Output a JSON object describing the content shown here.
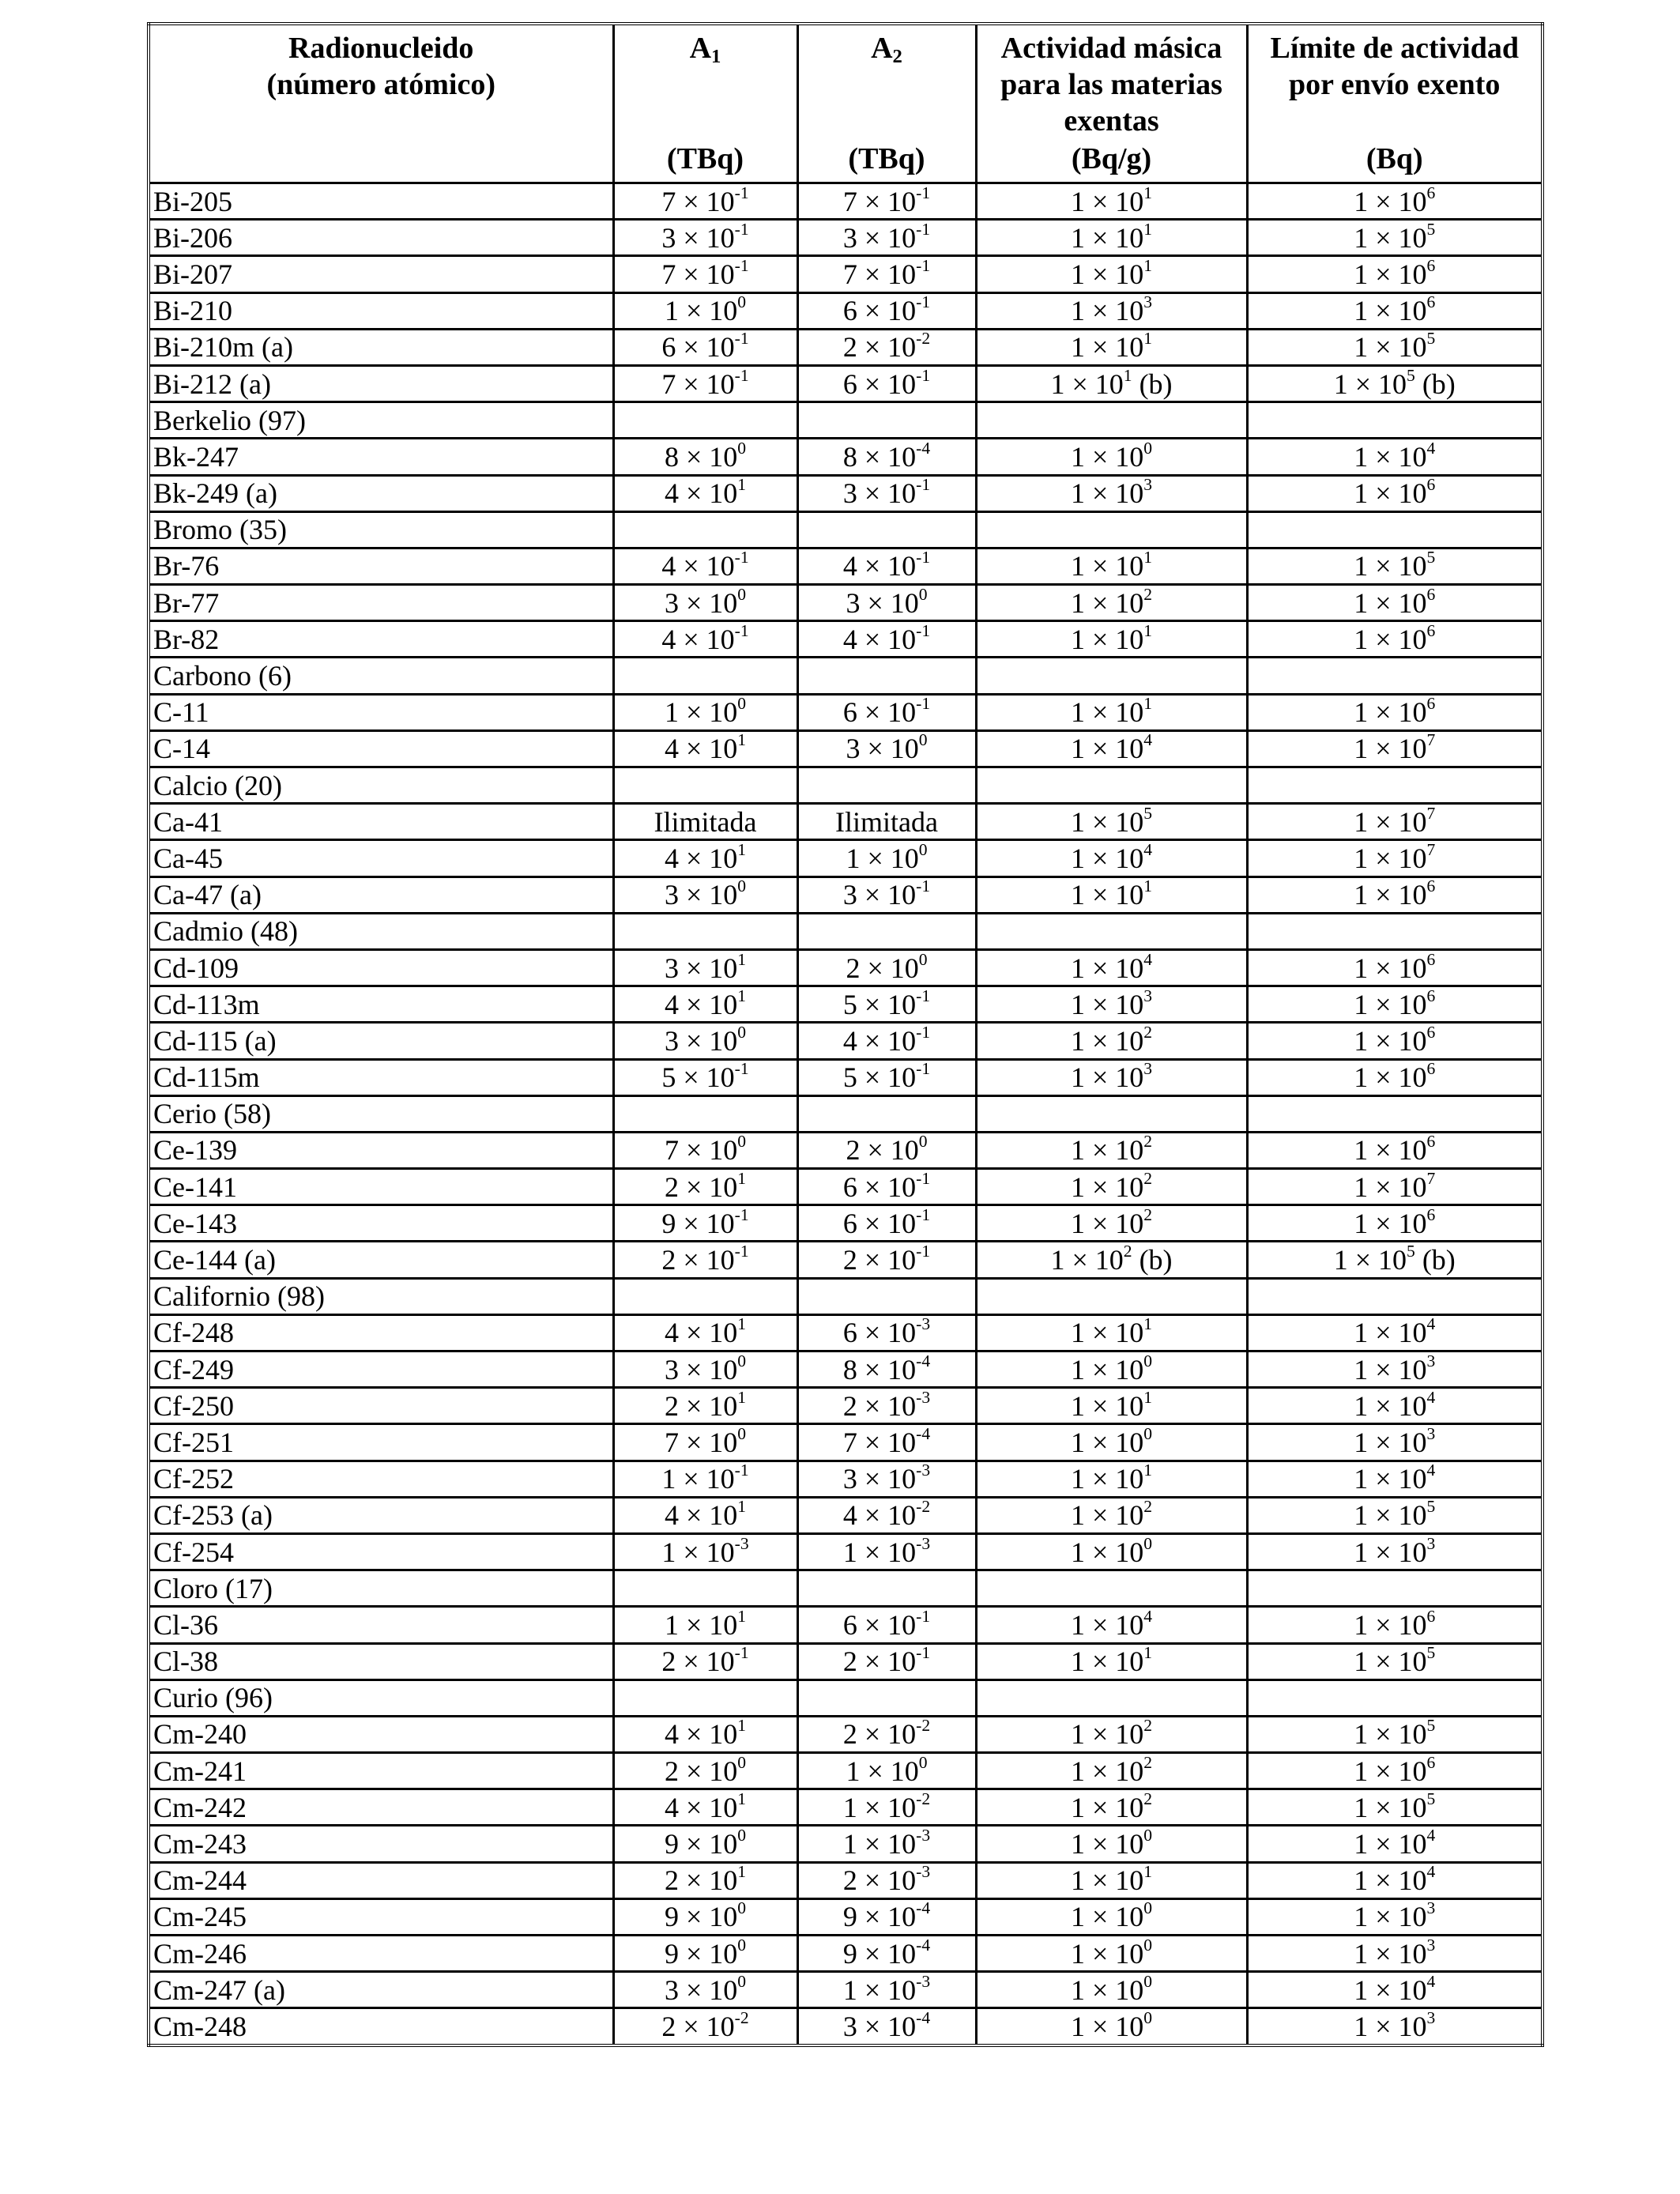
{
  "table": {
    "headers": [
      {
        "lines": [
          "Radionucleido",
          "(número atómico)"
        ],
        "unit": ""
      },
      {
        "main": "A",
        "sub": "1",
        "unit": "(TBq)"
      },
      {
        "main": "A",
        "sub": "2",
        "unit": "(TBq)"
      },
      {
        "lines": [
          "Actividad másica",
          "para las materias",
          "exentas"
        ],
        "unit": "(Bq/g)"
      },
      {
        "lines": [
          "Límite de actividad",
          "por envío exento"
        ],
        "unit": "(Bq)"
      }
    ],
    "rows": [
      {
        "name": "Bi-205",
        "cells": [
          "7|-1",
          "7|-1",
          "1|1",
          "1|6"
        ]
      },
      {
        "name": "Bi-206",
        "cells": [
          "3|-1",
          "3|-1",
          "1|1",
          "1|5"
        ]
      },
      {
        "name": "Bi-207",
        "cells": [
          "7|-1",
          "7|-1",
          "1|1",
          "1|6"
        ]
      },
      {
        "name": "Bi-210",
        "cells": [
          "1|0",
          "6|-1",
          "1|3",
          "1|6"
        ]
      },
      {
        "name": "Bi-210m (a)",
        "cells": [
          "6|-1",
          "2|-2",
          "1|1",
          "1|5"
        ]
      },
      {
        "name": "Bi-212 (a)",
        "cells": [
          "7|-1",
          "6|-1",
          "1|1|(b)",
          "1|5|(b)"
        ]
      },
      {
        "name": "Berkelio (97)",
        "element": true
      },
      {
        "name": "Bk-247",
        "cells": [
          "8|0",
          "8|-4",
          "1|0",
          "1|4"
        ]
      },
      {
        "name": "Bk-249 (a)",
        "cells": [
          "4|1",
          "3|-1",
          "1|3",
          "1|6"
        ]
      },
      {
        "name": "Bromo (35)",
        "element": true
      },
      {
        "name": "Br-76",
        "cells": [
          "4|-1",
          "4|-1",
          "1|1",
          "1|5"
        ]
      },
      {
        "name": "Br-77",
        "cells": [
          "3|0",
          "3|0",
          "1|2",
          "1|6"
        ]
      },
      {
        "name": "Br-82",
        "cells": [
          "4|-1",
          "4|-1",
          "1|1",
          "1|6"
        ]
      },
      {
        "name": "Carbono (6)",
        "element": true
      },
      {
        "name": "C-11",
        "cells": [
          "1|0",
          "6|-1",
          "1|1",
          "1|6"
        ]
      },
      {
        "name": "C-14",
        "cells": [
          "4|1",
          "3|0",
          "1|4",
          "1|7"
        ]
      },
      {
        "name": "Calcio (20)",
        "element": true
      },
      {
        "name": "Ca-41",
        "cells": [
          "Ilimitada",
          "Ilimitada",
          "1|5",
          "1|7"
        ]
      },
      {
        "name": "Ca-45",
        "cells": [
          "4|1",
          "1|0",
          "1|4",
          "1|7"
        ]
      },
      {
        "name": "Ca-47 (a)",
        "cells": [
          "3|0",
          "3|-1",
          "1|1",
          "1|6"
        ]
      },
      {
        "name": "Cadmio (48)",
        "element": true
      },
      {
        "name": "Cd-109",
        "cells": [
          "3|1",
          "2|0",
          "1|4",
          "1|6"
        ]
      },
      {
        "name": "Cd-113m",
        "cells": [
          "4|1",
          "5|-1",
          "1|3",
          "1|6"
        ]
      },
      {
        "name": "Cd-115 (a)",
        "cells": [
          "3|0",
          "4|-1",
          "1|2",
          "1|6"
        ]
      },
      {
        "name": "Cd-115m",
        "cells": [
          "5|-1",
          "5|-1",
          "1|3",
          "1|6"
        ]
      },
      {
        "name": "Cerio (58)",
        "element": true
      },
      {
        "name": "Ce-139",
        "cells": [
          "7|0",
          "2|0",
          "1|2",
          "1|6"
        ]
      },
      {
        "name": "Ce-141",
        "cells": [
          "2|1",
          "6|-1",
          "1|2",
          "1|7"
        ]
      },
      {
        "name": "Ce-143",
        "cells": [
          "9|-1",
          "6|-1",
          "1|2",
          "1|6"
        ]
      },
      {
        "name": "Ce-144 (a)",
        "cells": [
          "2|-1",
          "2|-1",
          "1|2|(b)",
          "1|5|(b)"
        ]
      },
      {
        "name": "Californio (98)",
        "element": true
      },
      {
        "name": "Cf-248",
        "cells": [
          "4|1",
          "6|-3",
          "1|1",
          "1|4"
        ]
      },
      {
        "name": "Cf-249",
        "cells": [
          "3|0",
          "8|-4",
          "1|0",
          "1|3"
        ]
      },
      {
        "name": "Cf-250",
        "cells": [
          "2|1",
          "2|-3",
          "1|1",
          "1|4"
        ]
      },
      {
        "name": "Cf-251",
        "cells": [
          "7|0",
          "7|-4",
          "1|0",
          "1|3"
        ]
      },
      {
        "name": "Cf-252",
        "cells": [
          "1|-1",
          "3|-3",
          "1|1",
          "1|4"
        ]
      },
      {
        "name": "Cf-253 (a)",
        "cells": [
          "4|1",
          "4|-2",
          "1|2",
          "1|5"
        ]
      },
      {
        "name": "Cf-254",
        "cells": [
          "1|-3",
          "1|-3",
          "1|0",
          "1|3"
        ]
      },
      {
        "name": "Cloro (17)",
        "element": true
      },
      {
        "name": "Cl-36",
        "cells": [
          "1|1",
          "6|-1",
          "1|4",
          "1|6"
        ]
      },
      {
        "name": "Cl-38",
        "cells": [
          "2|-1",
          "2|-1",
          "1|1",
          "1|5"
        ]
      },
      {
        "name": "Curio (96)",
        "element": true
      },
      {
        "name": "Cm-240",
        "cells": [
          "4|1",
          "2|-2",
          "1|2",
          "1|5"
        ]
      },
      {
        "name": "Cm-241",
        "cells": [
          "2|0",
          "1|0",
          "1|2",
          "1|6"
        ]
      },
      {
        "name": "Cm-242",
        "cells": [
          "4|1",
          "1|-2",
          "1|2",
          "1|5"
        ]
      },
      {
        "name": "Cm-243",
        "cells": [
          "9|0",
          "1|-3",
          "1|0",
          "1|4"
        ]
      },
      {
        "name": "Cm-244",
        "cells": [
          "2|1",
          "2|-3",
          "1|1",
          "1|4"
        ]
      },
      {
        "name": "Cm-245",
        "cells": [
          "9|0",
          "9|-4",
          "1|0",
          "1|3"
        ]
      },
      {
        "name": "Cm-246",
        "cells": [
          "9|0",
          "9|-4",
          "1|0",
          "1|3"
        ]
      },
      {
        "name": "Cm-247 (a)",
        "cells": [
          "3|0",
          "1|-3",
          "1|0",
          "1|4"
        ]
      },
      {
        "name": "Cm-248",
        "cells": [
          "2|-2",
          "3|-4",
          "1|0",
          "1|3"
        ]
      }
    ]
  }
}
